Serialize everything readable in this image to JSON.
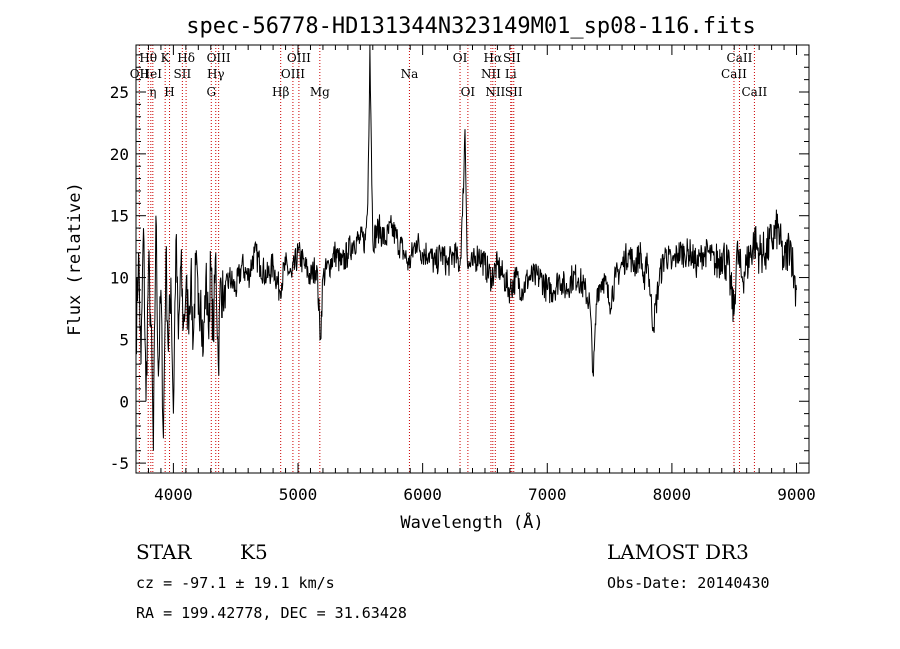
{
  "chart_data": {
    "type": "line",
    "title": "spec-56778-HD131344N323149M01_sp08-116.fits",
    "xlabel": "Wavelength (Å)",
    "ylabel": "Flux (relative)",
    "xlim": [
      3700,
      9100
    ],
    "ylim": [
      -5.8,
      28.8
    ],
    "xticks": [
      4000,
      5000,
      6000,
      7000,
      8000,
      9000
    ],
    "yticks": [
      -5,
      0,
      5,
      10,
      15,
      20,
      25
    ],
    "spectrum": {
      "x": [
        3700,
        3720,
        3740,
        3760,
        3780,
        3800,
        3820,
        3840,
        3860,
        3880,
        3900,
        3920,
        3940,
        3960,
        3980,
        4000,
        4020,
        4040,
        4060,
        4080,
        4100,
        4120,
        4140,
        4160,
        4180,
        4200,
        4220,
        4240,
        4260,
        4280,
        4300,
        4320,
        4340,
        4360,
        4380,
        4400,
        4450,
        4500,
        4550,
        4600,
        4650,
        4700,
        4750,
        4800,
        4850,
        4900,
        4950,
        5000,
        5050,
        5100,
        5150,
        5180,
        5200,
        5250,
        5300,
        5350,
        5400,
        5450,
        5500,
        5540,
        5560,
        5577,
        5600,
        5650,
        5700,
        5750,
        5800,
        5850,
        5890,
        5950,
        6000,
        6050,
        6100,
        6150,
        6200,
        6250,
        6300,
        6320,
        6340,
        6360,
        6400,
        6450,
        6500,
        6550,
        6600,
        6650,
        6700,
        6750,
        6800,
        6850,
        6900,
        6950,
        7000,
        7050,
        7100,
        7150,
        7200,
        7250,
        7300,
        7340,
        7370,
        7400,
        7450,
        7500,
        7550,
        7600,
        7650,
        7700,
        7750,
        7780,
        7800,
        7850,
        7900,
        7950,
        8000,
        8050,
        8100,
        8150,
        8200,
        8250,
        8300,
        8350,
        8400,
        8450,
        8498,
        8520,
        8542,
        8560,
        8600,
        8662,
        8700,
        8750,
        8800,
        8850,
        8900,
        8950,
        8980,
        9000
      ],
      "y": [
        5,
        12,
        3,
        14,
        0,
        11,
        6,
        -4,
        15,
        2,
        9,
        -3,
        12,
        4,
        10,
        -1,
        13,
        5,
        11,
        6,
        9,
        7,
        10,
        5,
        11,
        7,
        9,
        4,
        10,
        6,
        11,
        5,
        12,
        3,
        10,
        8,
        10,
        9,
        11,
        10,
        12,
        11,
        10,
        11,
        9,
        11,
        10,
        12,
        11,
        10,
        11,
        5,
        10,
        11,
        12,
        11,
        12,
        13,
        13,
        13,
        16,
        28.8,
        13,
        14,
        13,
        14,
        13,
        12,
        11,
        13,
        12,
        12,
        11,
        12,
        11,
        12,
        11,
        15,
        22,
        11,
        11,
        12,
        11,
        10,
        11,
        10,
        9,
        10,
        9,
        10,
        10,
        10,
        9,
        9,
        10,
        9,
        10,
        10,
        9,
        8,
        2,
        9,
        10,
        8,
        10,
        11,
        12,
        11,
        12,
        9,
        12,
        6,
        10,
        12,
        11,
        12,
        12,
        12,
        11,
        12,
        12,
        11,
        12,
        11,
        7,
        12,
        11,
        10,
        11,
        13,
        12,
        12,
        13,
        14,
        11,
        13,
        10,
        9
      ]
    },
    "lines": [
      {
        "label": "OII",
        "wavelength": 3727,
        "row": 2
      },
      {
        "label": "Hθ",
        "wavelength": 3798,
        "row": 1
      },
      {
        "label": "HeI",
        "wavelength": 3819,
        "row": 2
      },
      {
        "label": "η",
        "wavelength": 3835,
        "row": 3
      },
      {
        "label": "K",
        "wavelength": 3934,
        "row": 1
      },
      {
        "label": "H",
        "wavelength": 3969,
        "row": 3
      },
      {
        "label": "SII",
        "wavelength": 4072,
        "row": 2
      },
      {
        "label": "Hδ",
        "wavelength": 4102,
        "row": 1
      },
      {
        "label": "G",
        "wavelength": 4304,
        "row": 3
      },
      {
        "label": "Hγ",
        "wavelength": 4340,
        "row": 2
      },
      {
        "label": "OIII",
        "wavelength": 4363,
        "row": 1
      },
      {
        "label": "Hβ",
        "wavelength": 4861,
        "row": 3
      },
      {
        "label": "OIII",
        "wavelength": 4959,
        "row": 2
      },
      {
        "label": "OIII",
        "wavelength": 5007,
        "row": 1
      },
      {
        "label": "Mg",
        "wavelength": 5175,
        "row": 3
      },
      {
        "label": "Na",
        "wavelength": 5894,
        "row": 2
      },
      {
        "label": "OI",
        "wavelength": 6300,
        "row": 1
      },
      {
        "label": "OI",
        "wavelength": 6363,
        "row": 3
      },
      {
        "label": "NII",
        "wavelength": 6548,
        "row": 2
      },
      {
        "label": "Hα",
        "wavelength": 6563,
        "row": 1
      },
      {
        "label": "NII",
        "wavelength": 6583,
        "row": 3
      },
      {
        "label": "Li",
        "wavelength": 6707,
        "row": 2
      },
      {
        "label": "SII",
        "wavelength": 6716,
        "row": 1
      },
      {
        "label": "SII",
        "wavelength": 6731,
        "row": 3
      },
      {
        "label": "CaII",
        "wavelength": 8498,
        "row": 2
      },
      {
        "label": "CaII",
        "wavelength": 8542,
        "row": 1
      },
      {
        "label": "CaII",
        "wavelength": 8662,
        "row": 3
      }
    ]
  },
  "info": {
    "class_label": "STAR",
    "subclass": "K5",
    "survey": "LAMOST DR3",
    "redshift_line": "cz = -97.1 ± 19.1 km/s",
    "obs_date_line": "Obs-Date: 20140430",
    "coords_line": "RA = 199.42778, DEC =  31.63428"
  },
  "colors": {
    "spectrum": "#000000",
    "line_marker": "#cc0000",
    "axes": "#000000"
  }
}
